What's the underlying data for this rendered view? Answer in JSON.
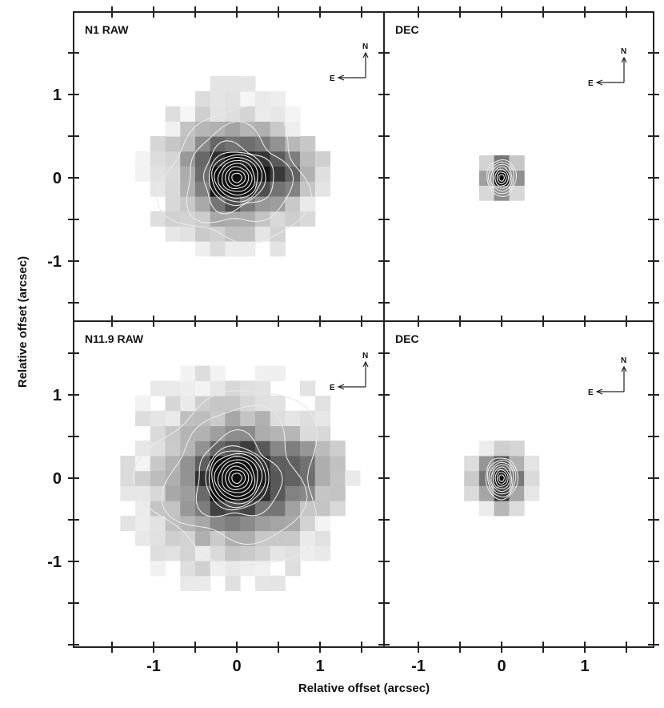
{
  "chart_data": {
    "type": "heatmap",
    "description_free": true,
    "xlabel": "Relative offset (arcsec)",
    "ylabel": "Relative offset (arcsec)",
    "x_ticklabels": [
      "-1",
      "0",
      "1"
    ],
    "y_ticklabels": [
      "1",
      "0",
      "-1"
    ],
    "xlim": [
      -1.9,
      1.9
    ],
    "ylim": [
      -1.9,
      1.9
    ],
    "pixel_scale_arcsec": 0.18,
    "contour_color": "#e8e8e8",
    "panels": [
      {
        "id": "n1-raw",
        "label": "N1 RAW",
        "compass": {
          "north": "N",
          "east": "E"
        },
        "source": {
          "x0": -0.05,
          "y0": 0.05,
          "sigma_x": 0.5,
          "sigma_y": 0.47,
          "extent": 1.1,
          "core_sigma": 0.22
        },
        "secondary": {
          "x0": 0.55,
          "y0": 0.05,
          "amp": 0.35,
          "sigma": 0.25
        },
        "contours_radii": [
          0.06,
          0.1,
          0.14,
          0.18,
          0.22,
          0.26,
          0.3,
          0.34,
          0.42,
          0.62,
          0.85
        ]
      },
      {
        "id": "n1-dec",
        "label": "DEC",
        "compass": {
          "north": "N",
          "east": "E"
        },
        "source": {
          "x0": 0.0,
          "y0": 0.0,
          "sigma_x": 0.16,
          "sigma_y": 0.2,
          "extent": 0.3,
          "core_sigma": 0.1
        },
        "contours_radii": [
          0.04,
          0.07,
          0.1,
          0.13,
          0.16,
          0.19,
          0.22
        ]
      },
      {
        "id": "n11-raw",
        "label": "N11.9 RAW",
        "compass": {
          "north": "N",
          "east": "E"
        },
        "source": {
          "x0": -0.05,
          "y0": 0.0,
          "sigma_x": 0.6,
          "sigma_y": 0.6,
          "extent": 1.45,
          "core_sigma": 0.26
        },
        "secondary": {
          "x0": 0.75,
          "y0": 0.05,
          "amp": 0.35,
          "sigma": 0.3
        },
        "contours_radii": [
          0.06,
          0.1,
          0.14,
          0.18,
          0.22,
          0.26,
          0.3,
          0.34,
          0.38,
          0.5,
          0.8,
          1.05
        ]
      },
      {
        "id": "n11-dec",
        "label": "DEC",
        "compass": {
          "north": "N",
          "east": "E"
        },
        "source": {
          "x0": 0.0,
          "y0": 0.0,
          "sigma_x": 0.2,
          "sigma_y": 0.26,
          "extent": 0.45,
          "core_sigma": 0.12
        },
        "contours_radii": [
          0.04,
          0.07,
          0.1,
          0.13,
          0.16,
          0.19,
          0.22,
          0.25
        ]
      }
    ]
  }
}
